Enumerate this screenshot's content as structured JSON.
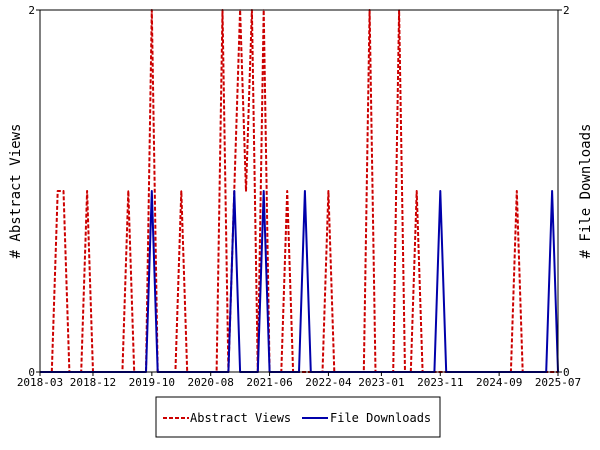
{
  "chart_data": {
    "type": "line",
    "ylabel_left": "# Abstract Views",
    "ylabel_right": "# File Downloads",
    "x_tick_labels": [
      "2018-03",
      "2018-12",
      "2019-10",
      "2020-08",
      "2021-06",
      "2022-04",
      "2023-01",
      "2023-11",
      "2024-09",
      "2025-07"
    ],
    "x_start": "2018-03",
    "x_end": "2025-07",
    "ylim": [
      0,
      2
    ],
    "y_tick_labels": [
      "0",
      "2"
    ],
    "grid": false,
    "legend_position": "bottom-center",
    "series": [
      {
        "name": "Abstract Views",
        "color": "#cc0000",
        "style": "dashed",
        "axis": "left",
        "points": [
          [
            "2018-03",
            0
          ],
          [
            "2018-05",
            0
          ],
          [
            "2018-06",
            1
          ],
          [
            "2018-07",
            1
          ],
          [
            "2018-08",
            0
          ],
          [
            "2018-10",
            0
          ],
          [
            "2018-11",
            1
          ],
          [
            "2018-12",
            0
          ],
          [
            "2019-05",
            0
          ],
          [
            "2019-06",
            1
          ],
          [
            "2019-07",
            0
          ],
          [
            "2019-09",
            0
          ],
          [
            "2019-10",
            2
          ],
          [
            "2019-11",
            0
          ],
          [
            "2020-02",
            0
          ],
          [
            "2020-03",
            1
          ],
          [
            "2020-04",
            0
          ],
          [
            "2020-09",
            0
          ],
          [
            "2020-10",
            2
          ],
          [
            "2020-11",
            0
          ],
          [
            "2021-01",
            2
          ],
          [
            "2021-02",
            1
          ],
          [
            "2021-03",
            2
          ],
          [
            "2021-04",
            0
          ],
          [
            "2021-05",
            2
          ],
          [
            "2021-06",
            0
          ],
          [
            "2021-08",
            0
          ],
          [
            "2021-09",
            1
          ],
          [
            "2021-10",
            0
          ],
          [
            "2022-03",
            0
          ],
          [
            "2022-04",
            1
          ],
          [
            "2022-05",
            0
          ],
          [
            "2022-10",
            0
          ],
          [
            "2022-11",
            2
          ],
          [
            "2022-12",
            0
          ],
          [
            "2023-03",
            0
          ],
          [
            "2023-04",
            2
          ],
          [
            "2023-05",
            0
          ],
          [
            "2023-06",
            0
          ],
          [
            "2023-07",
            1
          ],
          [
            "2023-08",
            0
          ],
          [
            "2024-11",
            0
          ],
          [
            "2024-12",
            1
          ],
          [
            "2025-01",
            0
          ],
          [
            "2025-07",
            0
          ]
        ]
      },
      {
        "name": "File Downloads",
        "color": "#0000aa",
        "style": "solid",
        "axis": "right",
        "points": [
          [
            "2018-03",
            0
          ],
          [
            "2019-09",
            0
          ],
          [
            "2019-10",
            1
          ],
          [
            "2019-11",
            0
          ],
          [
            "2020-11",
            0
          ],
          [
            "2020-12",
            1
          ],
          [
            "2021-01",
            0
          ],
          [
            "2021-04",
            0
          ],
          [
            "2021-05",
            1
          ],
          [
            "2021-06",
            0
          ],
          [
            "2021-11",
            0
          ],
          [
            "2021-12",
            1
          ],
          [
            "2022-01",
            0
          ],
          [
            "2023-10",
            0
          ],
          [
            "2023-11",
            1
          ],
          [
            "2023-12",
            0
          ],
          [
            "2025-05",
            0
          ],
          [
            "2025-06",
            1
          ],
          [
            "2025-07",
            0
          ]
        ]
      }
    ]
  }
}
